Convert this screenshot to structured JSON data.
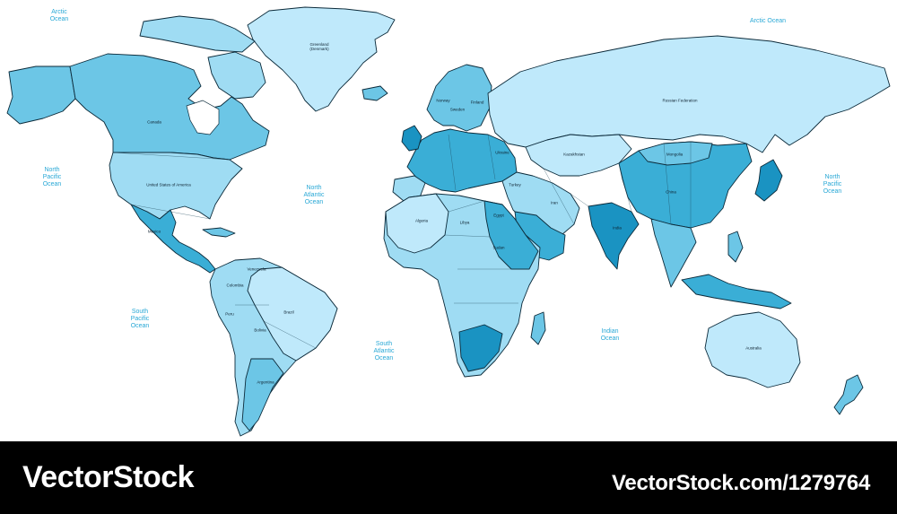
{
  "map": {
    "oceans": [
      {
        "id": "arctic-west",
        "label": "Arctic\nOcean"
      },
      {
        "id": "arctic-east",
        "label": "Arctic Ocean"
      },
      {
        "id": "north-pacific-west",
        "label": "North\nPacific\nOcean"
      },
      {
        "id": "north-atlantic",
        "label": "North\nAtlantic\nOcean"
      },
      {
        "id": "north-pacific-east",
        "label": "North\nPacific\nOcean"
      },
      {
        "id": "south-pacific",
        "label": "South\nPacific\nOcean"
      },
      {
        "id": "south-atlantic",
        "label": "South\nAtlantic\nOcean"
      },
      {
        "id": "indian",
        "label": "Indian\nOcean"
      }
    ],
    "countries": [
      {
        "id": "canada",
        "label": "Canada"
      },
      {
        "id": "usa",
        "label": "United States of America"
      },
      {
        "id": "brazil",
        "label": "Brazil"
      },
      {
        "id": "argentina",
        "label": "Argentina"
      },
      {
        "id": "russia",
        "label": "Russian Federation"
      },
      {
        "id": "china",
        "label": "China"
      },
      {
        "id": "india",
        "label": "India"
      },
      {
        "id": "australia",
        "label": "Australia"
      },
      {
        "id": "greenland",
        "label": "Greenland\n(Denmark)"
      },
      {
        "id": "kazakhstan",
        "label": "Kazakhstan"
      },
      {
        "id": "mongolia",
        "label": "Mongolia"
      },
      {
        "id": "iran",
        "label": "Iran"
      },
      {
        "id": "mexico",
        "label": "Mexico"
      },
      {
        "id": "colombia",
        "label": "Colombia"
      },
      {
        "id": "peru",
        "label": "Peru"
      },
      {
        "id": "bolivia",
        "label": "Bolivia"
      },
      {
        "id": "venezuela",
        "label": "Venezuela"
      },
      {
        "id": "algeria",
        "label": "Algeria"
      },
      {
        "id": "libya",
        "label": "Libya"
      },
      {
        "id": "egypt",
        "label": "Egypt"
      },
      {
        "id": "sudan",
        "label": "Sudan"
      },
      {
        "id": "finland",
        "label": "Finland"
      },
      {
        "id": "sweden",
        "label": "Sweden"
      },
      {
        "id": "norway",
        "label": "Norway"
      },
      {
        "id": "turkey",
        "label": "Turkey"
      },
      {
        "id": "ukraine",
        "label": "Ukraine"
      }
    ]
  },
  "footer": {
    "brand_left": "VectorStock",
    "brand_right": "VectorStock.com/1279764",
    "background": "#000000",
    "text_color": "#ffffff"
  },
  "colors": {
    "palest": "#bfe9fb",
    "light": "#9fdcf3",
    "medium": "#6cc6e6",
    "strong": "#3aaed6",
    "deep": "#1a93c2",
    "ocean_text": "#29a8d6",
    "outline": "#0b2a3a"
  }
}
